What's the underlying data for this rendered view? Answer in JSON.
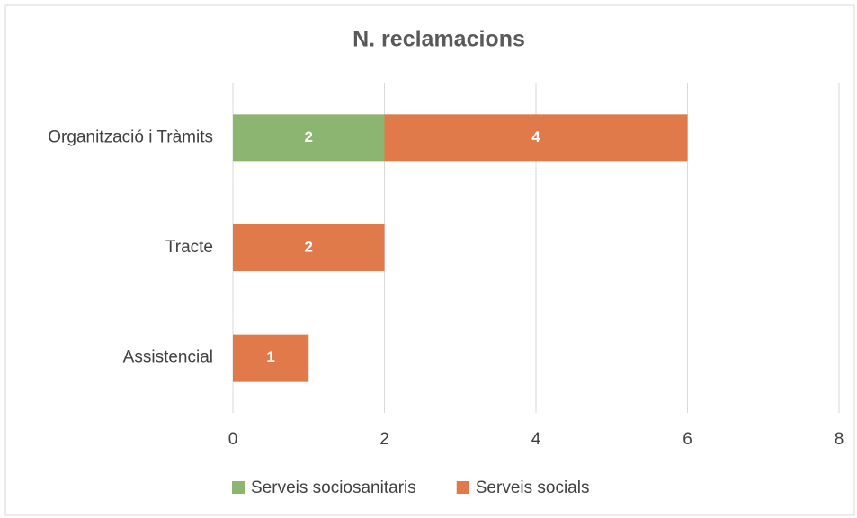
{
  "chart_data": {
    "type": "bar",
    "orientation": "horizontal",
    "stacked": true,
    "title": "N. reclamacions",
    "categories": [
      "Organització i Tràmits",
      "Tracte",
      "Assistencial"
    ],
    "series": [
      {
        "name": "Serveis sociosanitaris",
        "color": "#8db572",
        "values": [
          2,
          null,
          null
        ]
      },
      {
        "name": "Serveis socials",
        "color": "#e07a4a",
        "values": [
          4,
          2,
          1
        ]
      }
    ],
    "xlim": [
      0,
      8
    ],
    "xticks": [
      0,
      2,
      4,
      6,
      8
    ],
    "grid": true,
    "legend": "bottom"
  }
}
